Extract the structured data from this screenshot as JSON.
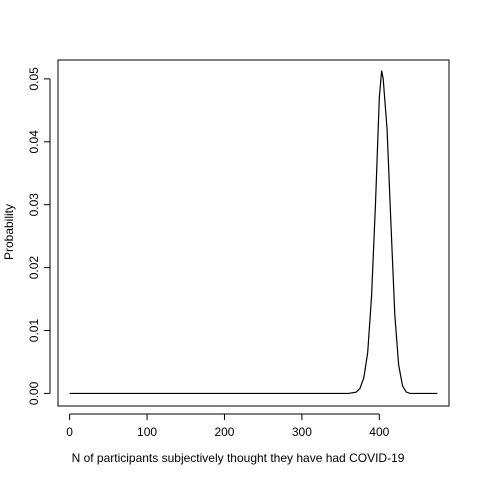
{
  "chart_data": {
    "type": "line",
    "title": "",
    "xlabel": "N of participants subjectively thought they have had COVID-19",
    "ylabel": "Probability",
    "xlim": [
      -15,
      490
    ],
    "ylim": [
      -0.002,
      0.053
    ],
    "x_ticks": [
      0,
      100,
      200,
      300,
      400
    ],
    "x_tick_labels": [
      "0",
      "100",
      "200",
      "300",
      "400"
    ],
    "y_ticks": [
      0.0,
      0.01,
      0.02,
      0.03,
      0.04,
      0.05
    ],
    "y_tick_labels": [
      "0.00",
      "0.01",
      "0.02",
      "0.03",
      "0.04",
      "0.05"
    ],
    "grid": false,
    "legend": "none",
    "series": [
      {
        "x": [
          0,
          100,
          200,
          300,
          360,
          370,
          375,
          380,
          385,
          390,
          395,
          400,
          403,
          405,
          410,
          415,
          420,
          425,
          430,
          435,
          440,
          475
        ],
        "y": [
          0,
          0,
          0,
          0,
          0,
          0.0002,
          0.0008,
          0.0025,
          0.0065,
          0.0155,
          0.03,
          0.047,
          0.0513,
          0.05,
          0.042,
          0.027,
          0.0125,
          0.0045,
          0.0012,
          0.0002,
          0,
          0
        ]
      }
    ]
  }
}
